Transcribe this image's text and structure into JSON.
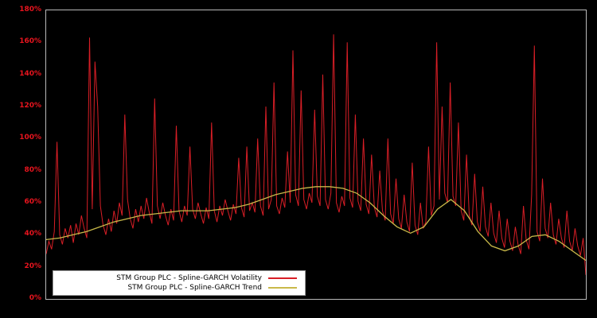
{
  "chart_data": {
    "type": "line",
    "title": "",
    "xlabel": "",
    "ylabel": "",
    "ylim": [
      0,
      180
    ],
    "grid": false,
    "background_color": "#000000",
    "axis_color": "#b9b9b9",
    "tick_label_color": "#e8141e",
    "legend_position": "bottom-left",
    "y_ticks": [
      {
        "value": 0,
        "label": "0%"
      },
      {
        "value": 20,
        "label": "20%"
      },
      {
        "value": 40,
        "label": "40%"
      },
      {
        "value": 60,
        "label": "60%"
      },
      {
        "value": 80,
        "label": "80%"
      },
      {
        "value": 100,
        "label": "100%"
      },
      {
        "value": 120,
        "label": "120%"
      },
      {
        "value": 140,
        "label": "140%"
      },
      {
        "value": 160,
        "label": "160%"
      },
      {
        "value": 180,
        "label": "180%"
      }
    ],
    "series": [
      {
        "name": "STM Group PLC - Spline-GARCH Volatility",
        "color": "#d91e26",
        "stroke_width": 1,
        "values": [
          28,
          36,
          31,
          42,
          98,
          40,
          34,
          44,
          38,
          46,
          35,
          47,
          40,
          52,
          44,
          38,
          163,
          56,
          148,
          120,
          58,
          46,
          40,
          50,
          42,
          55,
          47,
          60,
          52,
          115,
          62,
          50,
          44,
          56,
          48,
          58,
          50,
          63,
          54,
          47,
          125,
          58,
          50,
          60,
          52,
          46,
          56,
          49,
          108,
          55,
          48,
          58,
          52,
          95,
          56,
          50,
          60,
          53,
          47,
          57,
          50,
          110,
          55,
          48,
          58,
          52,
          62,
          55,
          49,
          59,
          53,
          88,
          57,
          51,
          95,
          55,
          60,
          54,
          100,
          58,
          52,
          120,
          56,
          62,
          135,
          58,
          53,
          63,
          57,
          92,
          60,
          155,
          65,
          58,
          130,
          62,
          56,
          66,
          60,
          118,
          64,
          58,
          140,
          62,
          56,
          66,
          165,
          60,
          54,
          64,
          58,
          160,
          63,
          57,
          115,
          61,
          55,
          100,
          59,
          53,
          90,
          57,
          51,
          80,
          55,
          49,
          100,
          53,
          47,
          75,
          50,
          44,
          65,
          48,
          42,
          85,
          46,
          40,
          60,
          44,
          48,
          95,
          52,
          58,
          160,
          62,
          120,
          66,
          60,
          135,
          64,
          58,
          110,
          55,
          49,
          90,
          52,
          46,
          78,
          48,
          42,
          70,
          45,
          39,
          60,
          41,
          35,
          55,
          38,
          32,
          50,
          36,
          30,
          45,
          34,
          28,
          58,
          37,
          31,
          65,
          158,
          42,
          36,
          75,
          44,
          38,
          60,
          40,
          34,
          50,
          38,
          32,
          55,
          36,
          30,
          44,
          33,
          27,
          38,
          15
        ]
      },
      {
        "name": "STM Group PLC - Spline-GARCH Trend",
        "color": "#c9b949",
        "stroke_width": 1.3,
        "values": [
          37,
          38,
          40,
          42,
          45,
          48,
          50,
          52,
          53,
          54,
          55,
          55,
          55,
          56,
          57,
          59,
          62,
          65,
          67,
          69,
          70,
          70,
          69,
          66,
          60,
          52,
          45,
          41,
          45,
          56,
          62,
          55,
          42,
          33,
          30,
          33,
          39,
          40,
          36,
          30,
          24
        ]
      }
    ]
  },
  "legend": {
    "items": [
      {
        "label": "STM Group PLC - Spline-GARCH Volatility",
        "color": "#d91e26"
      },
      {
        "label": "STM Group PLC - Spline-GARCH Trend",
        "color": "#c9b949"
      }
    ]
  }
}
